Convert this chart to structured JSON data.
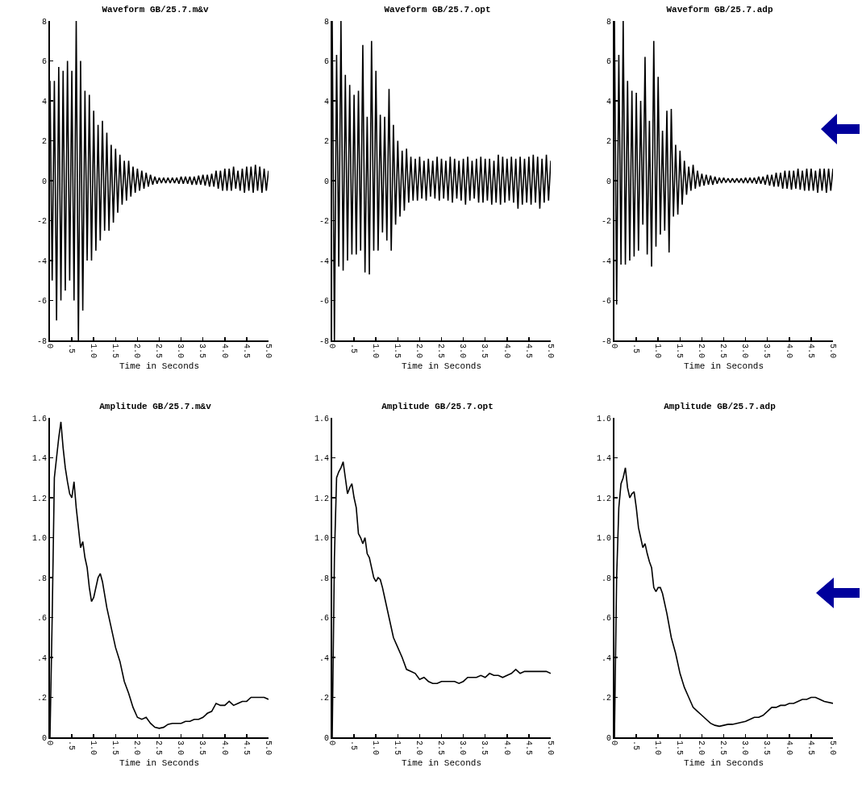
{
  "chart_data": [
    {
      "type": "line",
      "title": "Waveform GB/25.7.m&v",
      "xlabel": "Time in Seconds",
      "color": "#000000",
      "x": [
        0,
        0.05,
        0.1,
        0.15,
        0.2,
        0.25,
        0.3,
        0.35,
        0.4,
        0.45,
        0.5,
        0.55,
        0.6,
        0.65,
        0.7,
        0.75,
        0.8,
        0.85,
        0.9,
        0.95,
        1,
        1.05,
        1.1,
        1.15,
        1.2,
        1.25,
        1.3,
        1.35,
        1.4,
        1.45,
        1.5,
        1.55,
        1.6,
        1.65,
        1.7,
        1.75,
        1.8,
        1.85,
        1.9,
        1.95,
        2,
        2.05,
        2.1,
        2.15,
        2.2,
        2.25,
        2.3,
        2.35,
        2.4,
        2.45,
        2.5,
        2.55,
        2.6,
        2.65,
        2.7,
        2.75,
        2.8,
        2.85,
        2.9,
        2.95,
        3,
        3.05,
        3.1,
        3.15,
        3.2,
        3.25,
        3.3,
        3.35,
        3.4,
        3.45,
        3.5,
        3.55,
        3.6,
        3.65,
        3.7,
        3.75,
        3.8,
        3.85,
        3.9,
        3.95,
        4,
        4.05,
        4.1,
        4.15,
        4.2,
        4.25,
        4.3,
        4.35,
        4.4,
        4.45,
        4.5,
        4.55,
        4.6,
        4.65,
        4.7,
        4.75,
        4.8,
        4.85,
        4.9,
        4.95,
        5
      ],
      "values": [
        5,
        -5,
        5,
        -7,
        5.7,
        -6,
        5.5,
        -5.5,
        6,
        -5,
        5.5,
        -6,
        8,
        -8,
        6,
        -6.5,
        4.5,
        -4,
        4.3,
        -4,
        3.5,
        -3.5,
        2.8,
        -3,
        3,
        -2.5,
        2.4,
        -2.5,
        1.8,
        -2.1,
        1.6,
        -1.6,
        1.3,
        -1.2,
        1,
        -1,
        1,
        -0.8,
        0.7,
        -0.6,
        0.6,
        -0.5,
        0.5,
        -0.4,
        0.4,
        -0.3,
        0.3,
        -0.2,
        0.2,
        -0.15,
        0.15,
        -0.12,
        0.15,
        -0.12,
        0.15,
        -0.12,
        0.15,
        -0.12,
        0.15,
        -0.15,
        0.2,
        -0.15,
        0.2,
        -0.15,
        0.2,
        -0.2,
        0.2,
        -0.2,
        0.25,
        -0.2,
        0.3,
        -0.25,
        0.3,
        -0.3,
        0.35,
        -0.3,
        0.5,
        -0.4,
        0.5,
        -0.5,
        0.6,
        -0.5,
        0.6,
        -0.5,
        0.7,
        -0.4,
        0.5,
        -0.5,
        0.6,
        -0.6,
        0.7,
        -0.5,
        0.7,
        -0.6,
        0.8,
        -0.5,
        0.7,
        -0.6,
        0.6,
        -0.5,
        0.5
      ],
      "xlim": [
        0,
        5
      ],
      "xticks": [
        0,
        {
          "value": 0.5,
          "label": ".5"
        },
        {
          "value": 1,
          "label": "1.0"
        },
        1.5,
        {
          "value": 2,
          "label": "2.0"
        },
        2.5,
        {
          "value": 3,
          "label": "3.0"
        },
        3.5,
        {
          "value": 4,
          "label": "4.0"
        },
        4.5,
        {
          "value": 5,
          "label": "5.0"
        }
      ],
      "ylim": [
        -8,
        8
      ],
      "yticks": [
        -8,
        -6,
        -4,
        -2,
        0,
        2,
        4,
        6,
        8
      ]
    },
    {
      "type": "line",
      "title": "Waveform GB/25.7.opt",
      "xlabel": "Time in Seconds",
      "color": "#000000",
      "x": [
        0,
        0.05,
        0.1,
        0.15,
        0.2,
        0.25,
        0.3,
        0.35,
        0.4,
        0.45,
        0.5,
        0.55,
        0.6,
        0.65,
        0.7,
        0.75,
        0.8,
        0.85,
        0.9,
        0.95,
        1,
        1.05,
        1.1,
        1.15,
        1.2,
        1.25,
        1.3,
        1.35,
        1.4,
        1.45,
        1.5,
        1.55,
        1.6,
        1.65,
        1.7,
        1.75,
        1.8,
        1.85,
        1.9,
        1.95,
        2,
        2.05,
        2.1,
        2.15,
        2.2,
        2.25,
        2.3,
        2.35,
        2.4,
        2.45,
        2.5,
        2.55,
        2.6,
        2.65,
        2.7,
        2.75,
        2.8,
        2.85,
        2.9,
        2.95,
        3,
        3.05,
        3.1,
        3.15,
        3.2,
        3.25,
        3.3,
        3.35,
        3.4,
        3.45,
        3.5,
        3.55,
        3.6,
        3.65,
        3.7,
        3.75,
        3.8,
        3.85,
        3.9,
        3.95,
        4,
        4.05,
        4.1,
        4.15,
        4.2,
        4.25,
        4.3,
        4.35,
        4.4,
        4.45,
        4.5,
        4.55,
        4.6,
        4.65,
        4.7,
        4.75,
        4.8,
        4.85,
        4.9,
        4.95,
        5
      ],
      "values": [
        8,
        -8,
        6.3,
        -4.3,
        8,
        -4.5,
        5.3,
        -4,
        4.8,
        -3.7,
        4.3,
        -3.7,
        4.5,
        -3.5,
        6.8,
        -4.6,
        3.2,
        -4.7,
        7,
        -3.5,
        5.5,
        -3.5,
        3.3,
        -2.6,
        3.2,
        -3,
        4.6,
        -3.5,
        2.8,
        -2.2,
        2,
        -1.8,
        1.5,
        -1.5,
        1.6,
        -1.1,
        1.2,
        -1,
        1.1,
        -1,
        1.2,
        -0.9,
        1,
        -1,
        1.1,
        -0.8,
        1,
        -0.9,
        1.2,
        -1,
        1.1,
        -0.9,
        1,
        -1,
        1.2,
        -1.1,
        1.1,
        -0.9,
        1,
        -1,
        1.1,
        -1.2,
        1.2,
        -1,
        1,
        -0.9,
        1.1,
        -1.1,
        1.2,
        -1.1,
        1.1,
        -1,
        1.1,
        -1.2,
        1,
        -1.1,
        1.3,
        -1.2,
        1.2,
        -1.1,
        1.1,
        -1,
        1.2,
        -1.1,
        1.1,
        -1.4,
        1.2,
        -1.2,
        1.1,
        -1.1,
        1.2,
        -1.2,
        1.3,
        -1.1,
        1.2,
        -1.4,
        1.1,
        -1.1,
        1.3,
        -1,
        1.0
      ],
      "xlim": [
        0,
        5
      ],
      "xticks": [
        0,
        {
          "value": 0.5,
          "label": ".5"
        },
        {
          "value": 1,
          "label": "1.0"
        },
        1.5,
        {
          "value": 2,
          "label": "2.0"
        },
        2.5,
        {
          "value": 3,
          "label": "3.0"
        },
        3.5,
        {
          "value": 4,
          "label": "4.0"
        },
        4.5,
        {
          "value": 5,
          "label": "5.0"
        }
      ],
      "ylim": [
        -8,
        8
      ],
      "yticks": [
        -8,
        -6,
        -4,
        -2,
        0,
        2,
        4,
        6,
        8
      ]
    },
    {
      "type": "line",
      "title": "Waveform GB/25.7.adp",
      "xlabel": "Time in Seconds",
      "color": "#000000",
      "x": [
        0,
        0.05,
        0.1,
        0.15,
        0.2,
        0.25,
        0.3,
        0.35,
        0.4,
        0.45,
        0.5,
        0.55,
        0.6,
        0.65,
        0.7,
        0.75,
        0.8,
        0.85,
        0.9,
        0.95,
        1,
        1.05,
        1.1,
        1.15,
        1.2,
        1.25,
        1.3,
        1.35,
        1.4,
        1.45,
        1.5,
        1.55,
        1.6,
        1.65,
        1.7,
        1.75,
        1.8,
        1.85,
        1.9,
        1.95,
        2,
        2.05,
        2.1,
        2.15,
        2.2,
        2.25,
        2.3,
        2.35,
        2.4,
        2.45,
        2.5,
        2.55,
        2.6,
        2.65,
        2.7,
        2.75,
        2.8,
        2.85,
        2.9,
        2.95,
        3,
        3.05,
        3.1,
        3.15,
        3.2,
        3.25,
        3.3,
        3.35,
        3.4,
        3.45,
        3.5,
        3.55,
        3.6,
        3.65,
        3.7,
        3.75,
        3.8,
        3.85,
        3.9,
        3.95,
        4,
        4.05,
        4.1,
        4.15,
        4.2,
        4.25,
        4.3,
        4.35,
        4.4,
        4.45,
        4.5,
        4.55,
        4.6,
        4.65,
        4.7,
        4.75,
        4.8,
        4.85,
        4.9,
        4.95,
        5
      ],
      "values": [
        8,
        -6.2,
        6.3,
        -4.2,
        8,
        -4.2,
        5,
        -4,
        4.5,
        -3.8,
        4.4,
        -3.5,
        4,
        -2.2,
        6.2,
        -3.7,
        3,
        -4.3,
        7,
        -3.3,
        5.2,
        -2.7,
        2.5,
        -2.5,
        3.5,
        -3.6,
        3.6,
        -1.8,
        1.8,
        -1.7,
        1.5,
        -1.2,
        1,
        -0.7,
        0.7,
        -0.5,
        0.8,
        -0.4,
        0.5,
        -0.3,
        0.35,
        -0.25,
        0.3,
        -0.2,
        0.25,
        -0.2,
        0.2,
        -0.15,
        0.15,
        -0.12,
        0.15,
        -0.1,
        0.12,
        -0.1,
        0.12,
        -0.1,
        0.12,
        -0.1,
        0.12,
        -0.12,
        0.15,
        -0.12,
        0.15,
        -0.12,
        0.15,
        -0.15,
        0.2,
        -0.15,
        0.2,
        -0.2,
        0.3,
        -0.25,
        0.3,
        -0.3,
        0.4,
        -0.3,
        0.4,
        -0.4,
        0.5,
        -0.4,
        0.5,
        -0.45,
        0.5,
        -0.4,
        0.6,
        -0.45,
        0.5,
        -0.5,
        0.6,
        -0.5,
        0.6,
        -0.5,
        0.5,
        -0.6,
        0.6,
        -0.5,
        0.6,
        -0.6,
        0.6,
        -0.5,
        0.6
      ],
      "xlim": [
        0,
        5
      ],
      "xticks": [
        0,
        {
          "value": 0.5,
          "label": ".5"
        },
        {
          "value": 1,
          "label": "1.0"
        },
        1.5,
        {
          "value": 2,
          "label": "2.0"
        },
        2.5,
        {
          "value": 3,
          "label": "3.0"
        },
        3.5,
        {
          "value": 4,
          "label": "4.0"
        },
        4.5,
        {
          "value": 5,
          "label": "5.0"
        }
      ],
      "ylim": [
        -8,
        8
      ],
      "yticks": [
        -8,
        -6,
        -4,
        -2,
        0,
        2,
        4,
        6,
        8
      ]
    },
    {
      "type": "line",
      "title": "Amplitude GB/25.7.m&v",
      "xlabel": "Time in Seconds",
      "color": "#000000",
      "x": [
        0,
        0.05,
        0.1,
        0.15,
        0.2,
        0.25,
        0.3,
        0.35,
        0.4,
        0.45,
        0.5,
        0.55,
        0.6,
        0.65,
        0.7,
        0.75,
        0.8,
        0.85,
        0.9,
        0.95,
        1,
        1.1,
        1.15,
        1.2,
        1.3,
        1.4,
        1.5,
        1.6,
        1.7,
        1.8,
        1.9,
        2,
        2.1,
        2.2,
        2.3,
        2.4,
        2.5,
        2.6,
        2.7,
        2.8,
        2.9,
        3,
        3.1,
        3.2,
        3.3,
        3.4,
        3.5,
        3.6,
        3.7,
        3.8,
        3.9,
        4,
        4.1,
        4.2,
        4.3,
        4.4,
        4.5,
        4.6,
        4.7,
        4.8,
        4.9,
        5
      ],
      "values": [
        0,
        0.6,
        1.3,
        1.4,
        1.5,
        1.58,
        1.45,
        1.35,
        1.28,
        1.22,
        1.2,
        1.28,
        1.15,
        1.05,
        0.95,
        0.98,
        0.9,
        0.85,
        0.75,
        0.68,
        0.7,
        0.8,
        0.82,
        0.78,
        0.65,
        0.55,
        0.45,
        0.38,
        0.28,
        0.22,
        0.15,
        0.1,
        0.09,
        0.1,
        0.07,
        0.05,
        0.045,
        0.05,
        0.065,
        0.07,
        0.07,
        0.07,
        0.08,
        0.08,
        0.09,
        0.09,
        0.1,
        0.12,
        0.13,
        0.17,
        0.16,
        0.16,
        0.18,
        0.16,
        0.17,
        0.18,
        0.18,
        0.2,
        0.2,
        0.2,
        0.2,
        0.19
      ],
      "xlim": [
        0,
        5
      ],
      "xticks": [
        0,
        {
          "value": 0.5,
          "label": ".5"
        },
        {
          "value": 1,
          "label": "1.0"
        },
        1.5,
        {
          "value": 2,
          "label": "2.0"
        },
        2.5,
        {
          "value": 3,
          "label": "3.0"
        },
        3.5,
        {
          "value": 4,
          "label": "4.0"
        },
        4.5,
        {
          "value": 5,
          "label": "5.0"
        }
      ],
      "ylim": [
        0,
        1.6
      ],
      "yticks": [
        0,
        {
          "value": 0.2,
          "label": ".2"
        },
        {
          "value": 0.4,
          "label": ".4"
        },
        {
          "value": 0.6,
          "label": ".6"
        },
        {
          "value": 0.8,
          "label": ".8"
        },
        {
          "value": 1,
          "label": "1.0"
        },
        1.2,
        1.4,
        1.6
      ]
    },
    {
      "type": "line",
      "title": "Amplitude GB/25.7.opt",
      "xlabel": "Time in Seconds",
      "color": "#000000",
      "x": [
        0,
        0.05,
        0.1,
        0.15,
        0.2,
        0.25,
        0.3,
        0.35,
        0.4,
        0.45,
        0.5,
        0.55,
        0.6,
        0.65,
        0.7,
        0.75,
        0.8,
        0.85,
        0.9,
        0.95,
        1,
        1.05,
        1.1,
        1.15,
        1.2,
        1.3,
        1.4,
        1.5,
        1.6,
        1.7,
        1.8,
        1.9,
        2,
        2.1,
        2.2,
        2.3,
        2.4,
        2.5,
        2.6,
        2.7,
        2.8,
        2.9,
        3,
        3.1,
        3.2,
        3.3,
        3.4,
        3.5,
        3.6,
        3.7,
        3.8,
        3.9,
        4,
        4.1,
        4.2,
        4.3,
        4.4,
        4.5,
        4.6,
        4.7,
        4.8,
        4.9,
        5
      ],
      "values": [
        0,
        0.9,
        1.3,
        1.33,
        1.35,
        1.38,
        1.3,
        1.22,
        1.25,
        1.27,
        1.2,
        1.15,
        1.02,
        1,
        0.97,
        1,
        0.92,
        0.9,
        0.85,
        0.8,
        0.78,
        0.8,
        0.79,
        0.75,
        0.7,
        0.6,
        0.5,
        0.45,
        0.4,
        0.34,
        0.33,
        0.32,
        0.29,
        0.3,
        0.28,
        0.27,
        0.27,
        0.28,
        0.28,
        0.28,
        0.28,
        0.27,
        0.28,
        0.3,
        0.3,
        0.3,
        0.31,
        0.3,
        0.32,
        0.31,
        0.31,
        0.3,
        0.31,
        0.32,
        0.34,
        0.32,
        0.33,
        0.33,
        0.33,
        0.33,
        0.33,
        0.33,
        0.32
      ],
      "xlim": [
        0,
        5
      ],
      "xticks": [
        0,
        {
          "value": 0.5,
          "label": ".5"
        },
        {
          "value": 1,
          "label": "1.0"
        },
        1.5,
        {
          "value": 2,
          "label": "2.0"
        },
        2.5,
        {
          "value": 3,
          "label": "3.0"
        },
        3.5,
        {
          "value": 4,
          "label": "4.0"
        },
        4.5,
        {
          "value": 5,
          "label": "5.0"
        }
      ],
      "ylim": [
        0,
        1.6
      ],
      "yticks": [
        0,
        {
          "value": 0.2,
          "label": ".2"
        },
        {
          "value": 0.4,
          "label": ".4"
        },
        {
          "value": 0.6,
          "label": ".6"
        },
        {
          "value": 0.8,
          "label": ".8"
        },
        {
          "value": 1,
          "label": "1.0"
        },
        1.2,
        1.4,
        1.6
      ]
    },
    {
      "type": "line",
      "title": "Amplitude GB/25.7.adp",
      "xlabel": "Time in Seconds",
      "color": "#000000",
      "x": [
        0,
        0.05,
        0.1,
        0.15,
        0.2,
        0.25,
        0.3,
        0.35,
        0.4,
        0.45,
        0.5,
        0.55,
        0.6,
        0.65,
        0.7,
        0.75,
        0.8,
        0.85,
        0.9,
        0.95,
        1,
        1.05,
        1.1,
        1.2,
        1.3,
        1.4,
        1.5,
        1.6,
        1.7,
        1.8,
        1.9,
        2,
        2.1,
        2.2,
        2.3,
        2.4,
        2.5,
        2.6,
        2.7,
        2.8,
        2.9,
        3,
        3.1,
        3.2,
        3.3,
        3.4,
        3.5,
        3.6,
        3.7,
        3.8,
        3.9,
        4,
        4.1,
        4.2,
        4.3,
        4.4,
        4.5,
        4.6,
        4.7,
        4.8,
        5
      ],
      "values": [
        0,
        0.8,
        1.15,
        1.27,
        1.3,
        1.35,
        1.25,
        1.2,
        1.22,
        1.23,
        1.15,
        1.05,
        1,
        0.95,
        0.97,
        0.92,
        0.88,
        0.85,
        0.75,
        0.73,
        0.75,
        0.75,
        0.72,
        0.62,
        0.5,
        0.42,
        0.32,
        0.25,
        0.2,
        0.15,
        0.13,
        0.11,
        0.09,
        0.07,
        0.06,
        0.055,
        0.06,
        0.065,
        0.065,
        0.07,
        0.075,
        0.08,
        0.09,
        0.1,
        0.1,
        0.11,
        0.13,
        0.15,
        0.15,
        0.16,
        0.16,
        0.17,
        0.17,
        0.18,
        0.19,
        0.19,
        0.2,
        0.2,
        0.19,
        0.18,
        0.17
      ],
      "xlim": [
        0,
        5
      ],
      "xticks": [
        0,
        {
          "value": 0.5,
          "label": ".5"
        },
        {
          "value": 1,
          "label": "1.0"
        },
        1.5,
        {
          "value": 2,
          "label": "2.0"
        },
        2.5,
        {
          "value": 3,
          "label": "3.0"
        },
        3.5,
        {
          "value": 4,
          "label": "4.0"
        },
        4.5,
        {
          "value": 5,
          "label": "5.0"
        }
      ],
      "ylim": [
        0,
        1.6
      ],
      "yticks": [
        0,
        {
          "value": 0.2,
          "label": ".2"
        },
        {
          "value": 0.4,
          "label": ".4"
        },
        {
          "value": 0.6,
          "label": ".6"
        },
        {
          "value": 0.8,
          "label": ".8"
        },
        {
          "value": 1,
          "label": "1.0"
        },
        1.2,
        1.4,
        1.6
      ]
    }
  ]
}
